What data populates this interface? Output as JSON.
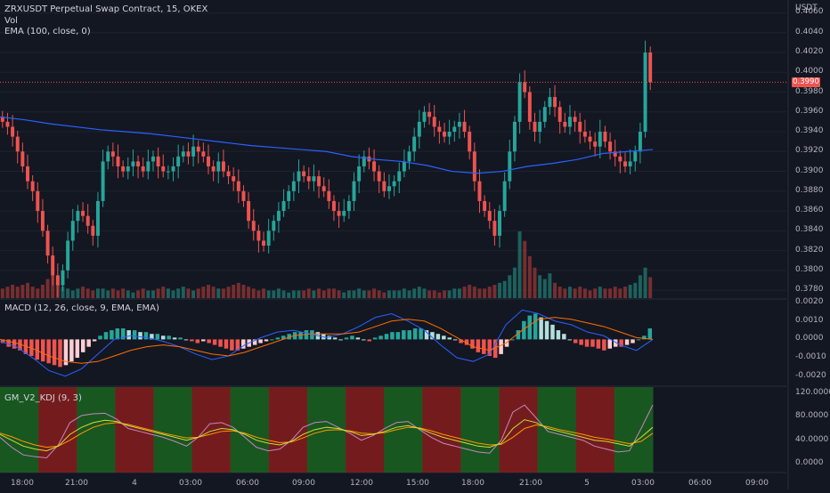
{
  "header": {
    "symbol_line": "ZRXUSDT Perpetual Swap Contract, 15, OKEX",
    "vol_label": "Vol",
    "ema_label": "EMA (100, close, 0)"
  },
  "price_axis": {
    "unit": "USDT",
    "ticks": [
      "0.4060",
      "0.4040",
      "0.4020",
      "0.4000",
      "0.3980",
      "0.3960",
      "0.3940",
      "0.3920",
      "0.3900",
      "0.3880",
      "0.3860",
      "0.3840",
      "0.3820",
      "0.3800",
      "0.3780"
    ],
    "tick_values": [
      0.406,
      0.404,
      0.402,
      0.4,
      0.398,
      0.396,
      0.394,
      0.392,
      0.39,
      0.388,
      0.386,
      0.384,
      0.382,
      0.38,
      0.378
    ],
    "ylim": [
      0.3772,
      0.4073
    ],
    "last_price": "0.3990",
    "last_price_value": 0.399
  },
  "macd": {
    "label": "MACD (12, 26, close, 9, EMA, EMA)",
    "ticks": [
      "0.0020",
      "0.0010",
      "0.0000",
      "-0.0010",
      "-0.0020"
    ],
    "tick_values": [
      0.002,
      0.001,
      0,
      -0.001,
      -0.002
    ]
  },
  "kdj": {
    "label": "GM_V2_KDJ (9, 3)",
    "ticks": [
      "120.0000",
      "80.0000",
      "40.0000",
      "0.0000"
    ],
    "tick_values": [
      120,
      80,
      40,
      0
    ]
  },
  "time_axis": {
    "labels": [
      "18:00",
      "21:00",
      "4",
      "03:00",
      "06:00",
      "09:00",
      "12:00",
      "15:00",
      "18:00",
      "21:00",
      "5",
      "03:00",
      "06:00",
      "09:00"
    ]
  },
  "colors": {
    "background": "#131722",
    "up": "#26a69a",
    "down": "#ef5350",
    "ema": "#2962ff",
    "macd_line": "#2962ff",
    "signal_line": "#ff6d00",
    "kdj_bull_band": "#1b5e20",
    "kdj_bear_band": "#7f1d1d"
  },
  "chart_data": [
    {
      "type": "candlestick",
      "title": "ZRXUSDT Perpetual Swap Contract, 15, OKEX",
      "note": "approximate OHLC read from chart, 15-minute bars",
      "close": [
        0.395,
        0.3945,
        0.3935,
        0.392,
        0.3905,
        0.389,
        0.388,
        0.386,
        0.384,
        0.3815,
        0.3795,
        0.3785,
        0.38,
        0.383,
        0.385,
        0.386,
        0.3855,
        0.3845,
        0.3835,
        0.387,
        0.391,
        0.392,
        0.3915,
        0.3905,
        0.39,
        0.3905,
        0.391,
        0.3905,
        0.39,
        0.391,
        0.3915,
        0.3905,
        0.39,
        0.39,
        0.3905,
        0.3915,
        0.392,
        0.3915,
        0.3925,
        0.392,
        0.3915,
        0.3905,
        0.39,
        0.391,
        0.39,
        0.3895,
        0.389,
        0.388,
        0.387,
        0.385,
        0.384,
        0.383,
        0.3825,
        0.384,
        0.385,
        0.386,
        0.387,
        0.388,
        0.389,
        0.39,
        0.3895,
        0.389,
        0.3895,
        0.3885,
        0.388,
        0.387,
        0.386,
        0.3855,
        0.386,
        0.387,
        0.389,
        0.3905,
        0.3915,
        0.391,
        0.39,
        0.389,
        0.388,
        0.3885,
        0.389,
        0.39,
        0.391,
        0.392,
        0.3935,
        0.395,
        0.396,
        0.3955,
        0.3945,
        0.394,
        0.3935,
        0.394,
        0.3945,
        0.395,
        0.394,
        0.392,
        0.389,
        0.387,
        0.386,
        0.385,
        0.3835,
        0.386,
        0.389,
        0.392,
        0.395,
        0.399,
        0.398,
        0.395,
        0.394,
        0.395,
        0.3965,
        0.3975,
        0.3965,
        0.395,
        0.3945,
        0.3955,
        0.395,
        0.394,
        0.3935,
        0.393,
        0.3925,
        0.394,
        0.393,
        0.392,
        0.3915,
        0.391,
        0.3905,
        0.391,
        0.392,
        0.394,
        0.402,
        0.399
      ],
      "volume": [
        0.5,
        0.6,
        0.7,
        0.6,
        0.7,
        0.8,
        0.6,
        0.5,
        0.7,
        1.0,
        1.2,
        0.8,
        0.6,
        0.5,
        0.4,
        0.5,
        0.6,
        0.5,
        0.4,
        0.5,
        0.5,
        0.4,
        0.5,
        0.4,
        0.5,
        0.4,
        0.3,
        0.4,
        0.5,
        0.4,
        0.4,
        0.5,
        0.6,
        0.5,
        0.4,
        0.5,
        0.6,
        0.5,
        0.4,
        0.5,
        0.6,
        0.7,
        0.6,
        0.5,
        0.5,
        0.6,
        0.7,
        0.8,
        0.7,
        0.6,
        0.5,
        0.4,
        0.5,
        0.4,
        0.4,
        0.5,
        0.4,
        0.3,
        0.4,
        0.4,
        0.4,
        0.5,
        0.4,
        0.5,
        0.4,
        0.5,
        0.5,
        0.4,
        0.3,
        0.4,
        0.4,
        0.5,
        0.4,
        0.4,
        0.5,
        0.4,
        0.3,
        0.4,
        0.4,
        0.4,
        0.5,
        0.4,
        0.5,
        0.6,
        0.5,
        0.4,
        0.4,
        0.3,
        0.4,
        0.4,
        0.5,
        0.5,
        0.6,
        0.7,
        0.6,
        0.5,
        0.5,
        0.6,
        0.7,
        0.8,
        0.9,
        1.2,
        1.6,
        3.5,
        3.0,
        2.2,
        1.6,
        1.2,
        1.0,
        1.3,
        0.8,
        0.6,
        0.5,
        0.6,
        0.5,
        0.6,
        0.5,
        0.4,
        0.5,
        0.6,
        0.5,
        0.5,
        0.6,
        0.5,
        0.6,
        0.7,
        0.8,
        1.2,
        1.6,
        1.1
      ]
    },
    {
      "type": "line",
      "title": "EMA (100, close, 0)",
      "note": "approximate values",
      "values": [
        0.3955,
        0.3952,
        0.3948,
        0.3945,
        0.3942,
        0.394,
        0.3938,
        0.3935,
        0.3932,
        0.3929,
        0.3926,
        0.3924,
        0.3922,
        0.392,
        0.3915,
        0.3912,
        0.391,
        0.3906,
        0.39,
        0.3898,
        0.39,
        0.3905,
        0.3908,
        0.3912,
        0.3918,
        0.392,
        0.3922
      ]
    },
    {
      "type": "bar",
      "title": "MACD (12, 26, close, 9, EMA, EMA)",
      "note": "approximate histogram, MACD and signal values",
      "histogram": [
        -0.0002,
        -0.0004,
        -0.0005,
        -0.0006,
        -0.0008,
        -0.0009,
        -0.0011,
        -0.0012,
        -0.0013,
        -0.0014,
        -0.0015,
        -0.0014,
        -0.0012,
        -0.001,
        -0.0007,
        -0.0004,
        -0.0001,
        0.0002,
        0.0004,
        0.0005,
        0.0006,
        0.0006,
        0.0005,
        0.0005,
        0.0004,
        0.0004,
        0.0003,
        0.0003,
        0.0002,
        0.0002,
        0.0001,
        0.0001,
        0.0,
        -0.0001,
        -0.0002,
        -0.0001,
        -0.0002,
        -0.0003,
        -0.0004,
        -0.0005,
        -0.0006,
        -0.0006,
        -0.0005,
        -0.0004,
        -0.0003,
        -0.0002,
        -0.0001,
        0.0,
        0.0001,
        0.0002,
        0.0003,
        0.0004,
        0.0004,
        0.0005,
        0.0005,
        0.0004,
        0.0003,
        0.0002,
        0.0001,
        0.0,
        0.0001,
        0.0002,
        0.0001,
        0.0,
        -0.0001,
        0.0001,
        0.0002,
        0.0003,
        0.0004,
        0.0004,
        0.0005,
        0.0005,
        0.0006,
        0.0006,
        0.0005,
        0.0004,
        0.0003,
        0.0002,
        0.0001,
        0.0,
        -0.0002,
        -0.0003,
        -0.0005,
        -0.0007,
        -0.0008,
        -0.0009,
        -0.001,
        -0.0008,
        -0.0004,
        0.0,
        0.0005,
        0.001,
        0.0013,
        0.0014,
        0.0012,
        0.001,
        0.0008,
        0.0005,
        0.0003,
        0.0,
        -0.0002,
        -0.0003,
        -0.0004,
        -0.0004,
        -0.0005,
        -0.0006,
        -0.0005,
        -0.0004,
        -0.0004,
        -0.0003,
        -0.0002,
        0.0,
        0.0002,
        0.0006
      ],
      "macd": [
        -0.0001,
        -0.0004,
        -0.001,
        -0.0017,
        -0.002,
        -0.0016,
        -0.0008,
        0.0,
        0.0002,
        0.0001,
        -0.0001,
        -0.0004,
        -0.0008,
        -0.0011,
        -0.0009,
        -0.0003,
        0.0001,
        0.0004,
        0.0005,
        0.0003,
        0.0001,
        0.0003,
        0.0007,
        0.0012,
        0.0014,
        0.001,
        0.0005,
        -0.0003,
        -0.001,
        -0.0012,
        -0.0008,
        0.0008,
        0.0016,
        0.0014,
        0.001,
        0.0008,
        0.0004,
        0.0002,
        -0.0003,
        -0.0006,
        0.0
      ],
      "signal": [
        0.0,
        -0.0002,
        -0.0005,
        -0.0009,
        -0.0012,
        -0.0013,
        -0.0012,
        -0.0009,
        -0.0006,
        -0.0004,
        -0.0003,
        -0.0004,
        -0.0006,
        -0.0008,
        -0.0009,
        -0.0007,
        -0.0004,
        -0.0001,
        0.0002,
        0.0003,
        0.0003,
        0.0003,
        0.0004,
        0.0007,
        0.001,
        0.0011,
        0.001,
        0.0006,
        0.0001,
        -0.0004,
        -0.0006,
        -0.0002,
        0.0005,
        0.0011,
        0.0012,
        0.0011,
        0.0009,
        0.0007,
        0.0004,
        0.0001,
        0.0
      ],
      "ylim": [
        -0.0025,
        0.0022
      ]
    },
    {
      "type": "line",
      "title": "GM_V2_KDJ (9, 3)",
      "note": "approximate K, D, J values and bull/bear background bands",
      "K": [
        50,
        40,
        30,
        25,
        22,
        30,
        50,
        62,
        70,
        74,
        72,
        65,
        60,
        55,
        50,
        45,
        40,
        45,
        55,
        60,
        58,
        50,
        40,
        35,
        32,
        38,
        50,
        58,
        62,
        60,
        55,
        48,
        50,
        55,
        62,
        65,
        60,
        52,
        45,
        40,
        35,
        30,
        28,
        35,
        60,
        75,
        70,
        60,
        55,
        50,
        45,
        40,
        38,
        34,
        30,
        45,
        62
      ],
      "D": [
        52,
        46,
        38,
        32,
        28,
        30,
        40,
        52,
        62,
        68,
        70,
        67,
        62,
        57,
        52,
        48,
        44,
        45,
        50,
        55,
        56,
        52,
        45,
        40,
        36,
        37,
        44,
        52,
        57,
        58,
        56,
        52,
        51,
        53,
        58,
        62,
        61,
        56,
        50,
        45,
        40,
        35,
        32,
        33,
        45,
        60,
        66,
        63,
        58,
        54,
        50,
        45,
        42,
        38,
        34,
        38,
        52
      ],
      "J": [
        45,
        28,
        15,
        12,
        10,
        32,
        70,
        82,
        85,
        86,
        76,
        60,
        55,
        50,
        45,
        38,
        30,
        45,
        68,
        70,
        62,
        45,
        28,
        22,
        25,
        40,
        62,
        70,
        72,
        62,
        52,
        40,
        48,
        60,
        70,
        72,
        58,
        45,
        35,
        30,
        25,
        20,
        18,
        40,
        88,
        100,
        78,
        55,
        50,
        45,
        40,
        30,
        25,
        20,
        22,
        60,
        100
      ],
      "bands": [
        "bull",
        "bear",
        "bull",
        "bear",
        "bull",
        "bear",
        "bull",
        "bear",
        "bull",
        "bear",
        "bull",
        "bear",
        "bull",
        "bear",
        "bull",
        "bear",
        "bull"
      ],
      "ylim": [
        -15,
        132
      ]
    }
  ]
}
